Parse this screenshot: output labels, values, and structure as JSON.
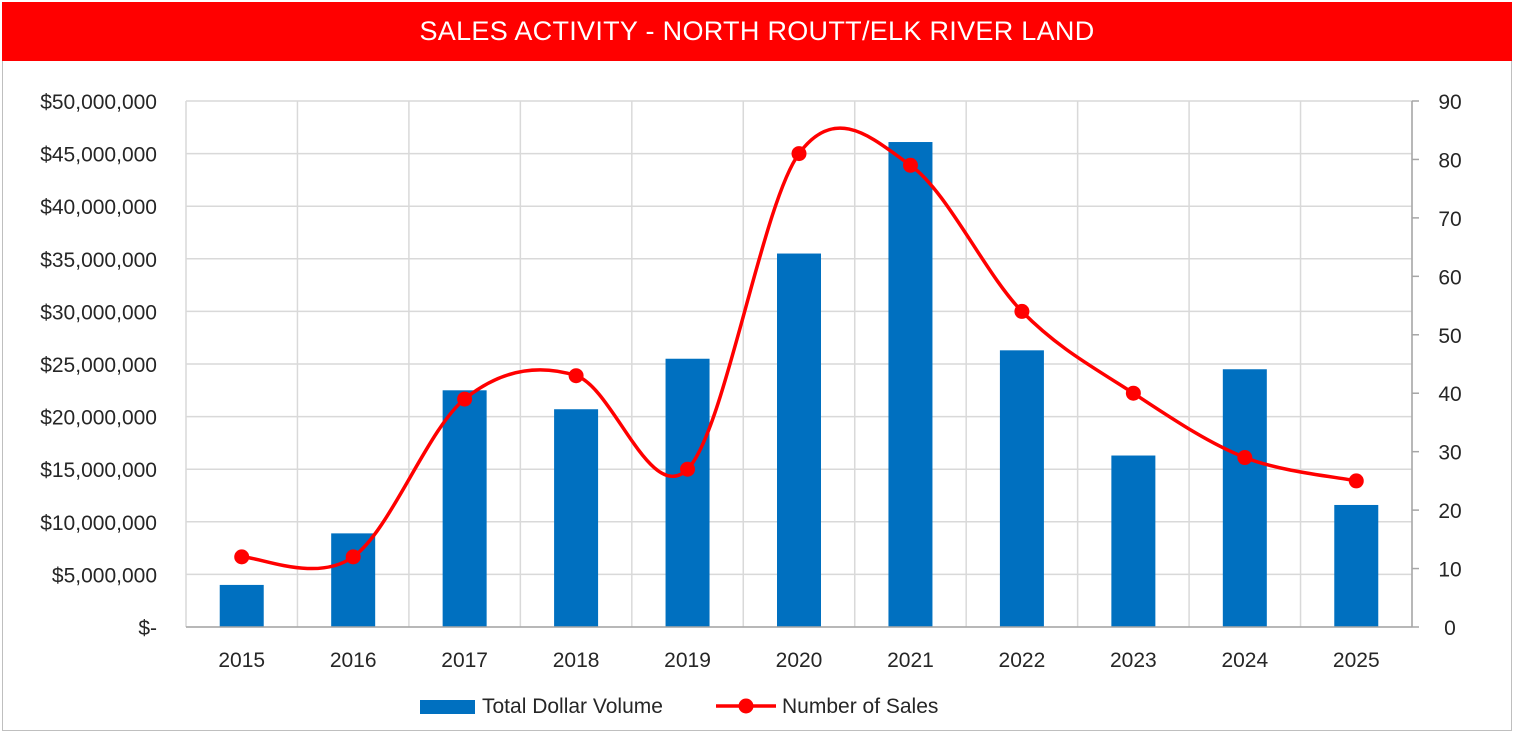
{
  "chart_data": {
    "type": "bar",
    "title": "SALES ACTIVITY - NORTH ROUTT/ELK RIVER LAND",
    "categories": [
      "2015",
      "2016",
      "2017",
      "2018",
      "2019",
      "2020",
      "2021",
      "2022",
      "2023",
      "2024",
      "2025"
    ],
    "series": [
      {
        "name": "Total Dollar Volume",
        "type": "bar",
        "axis": "left",
        "color": "#0070c0",
        "values": [
          4000000,
          8900000,
          22500000,
          20700000,
          25500000,
          35500000,
          46100000,
          26300000,
          16300000,
          24500000,
          11600000
        ]
      },
      {
        "name": "Number of Sales",
        "type": "line",
        "smooth": true,
        "axis": "right",
        "color": "#ff0000",
        "values": [
          12,
          12,
          39,
          43,
          27,
          81,
          79,
          54,
          40,
          29,
          25
        ]
      }
    ],
    "y_left": {
      "min": 0,
      "max": 50000000,
      "step": 5000000,
      "tick_labels": [
        "$-",
        "$5,000,000",
        "$10,000,000",
        "$15,000,000",
        "$20,000,000",
        "$25,000,000",
        "$30,000,000",
        "$35,000,000",
        "$40,000,000",
        "$45,000,000",
        "$50,000,000"
      ]
    },
    "y_right": {
      "min": 0,
      "max": 90,
      "step": 10,
      "tick_labels": [
        "0",
        "10",
        "20",
        "30",
        "40",
        "50",
        "60",
        "70",
        "80",
        "90"
      ]
    },
    "grid": true,
    "legend": {
      "position": "bottom"
    },
    "xlabel": "",
    "ylabel": ""
  }
}
